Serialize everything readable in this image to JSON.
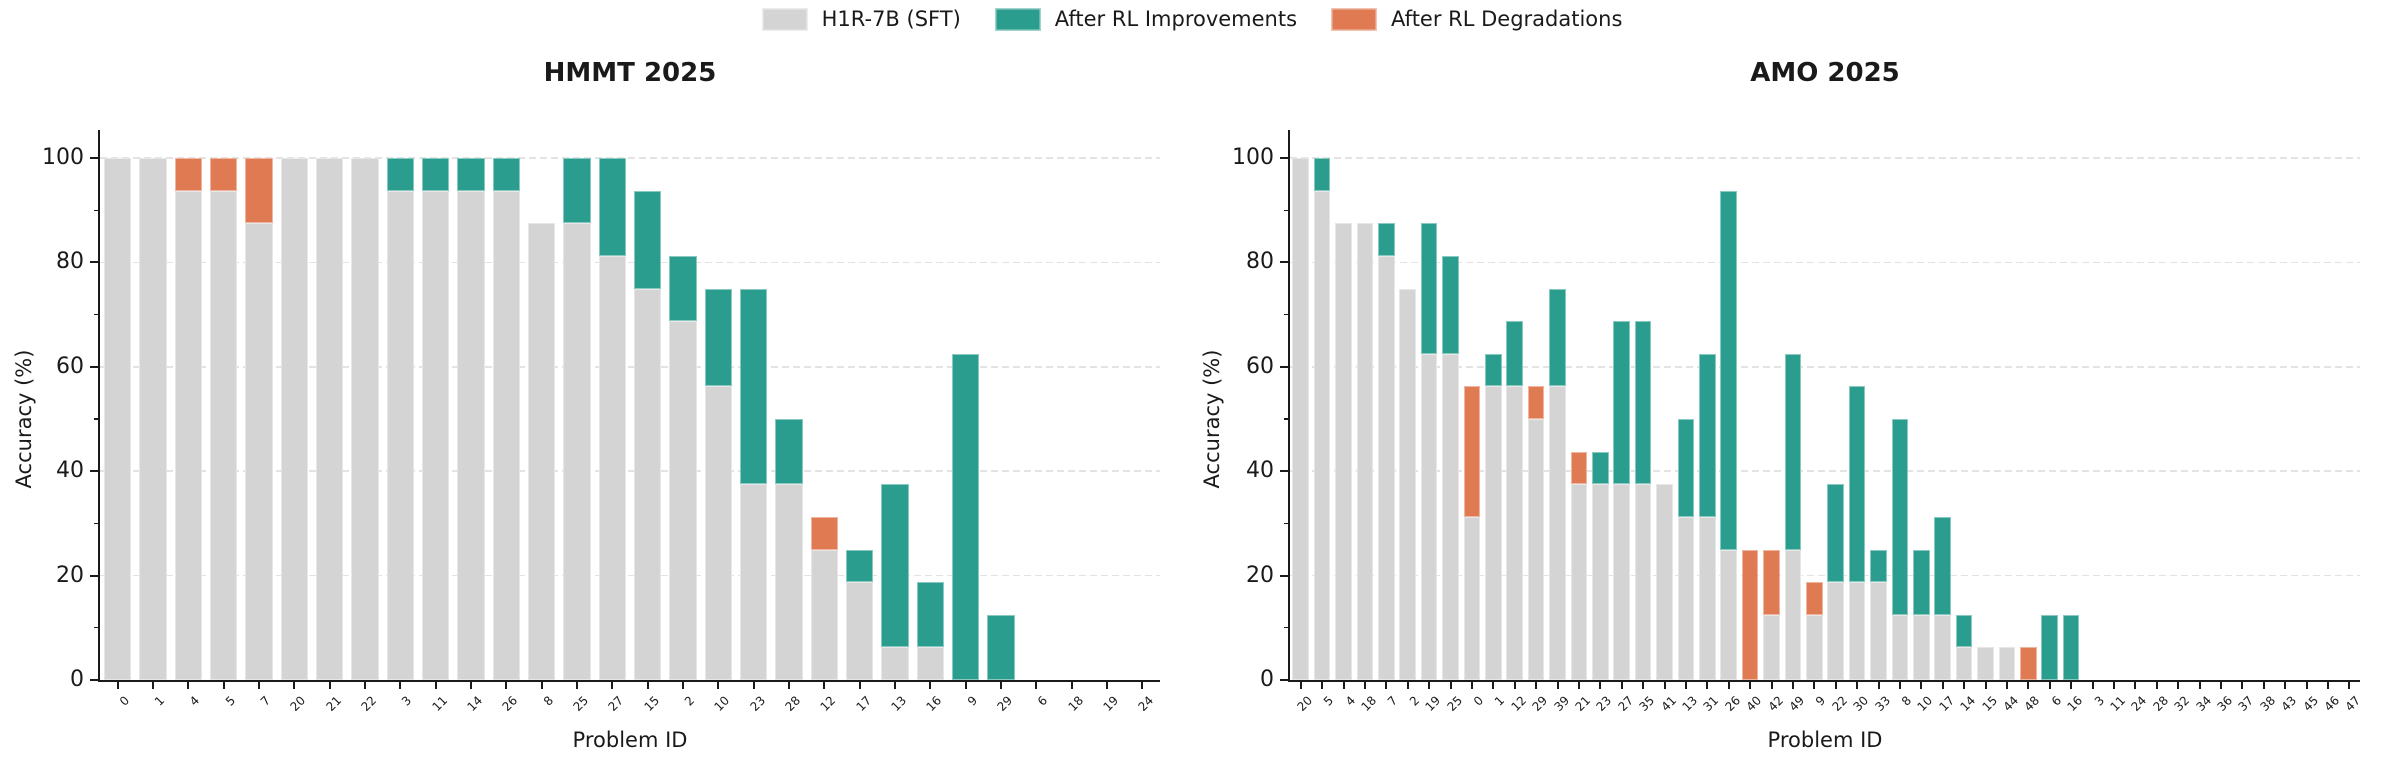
{
  "legend": {
    "items": [
      {
        "key": "sft",
        "label": "H1R-7B (SFT)",
        "color": "#d4d4d4"
      },
      {
        "key": "improvement",
        "label": "After RL Improvements",
        "color": "#2a9d8f"
      },
      {
        "key": "degradation",
        "label": "After RL Degradations",
        "color": "#e07a52"
      }
    ]
  },
  "chart_data": [
    {
      "type": "bar",
      "title": "HMMT 2025",
      "xlabel": "Problem ID",
      "ylabel": "Accuracy (%)",
      "ylim": [
        0,
        105
      ],
      "yticks": [
        0,
        20,
        40,
        60,
        80,
        100
      ],
      "grid": "dashed horizontal at major yticks",
      "legend_position": "top center above both charts",
      "stack_semantics": "gray bar = min(sft, after_rl); teal segment = gain from sft up to after_rl; orange segment = loss from after_rl up to sft",
      "problems": [
        {
          "id": "0",
          "sft": 100,
          "after_rl": 100
        },
        {
          "id": "1",
          "sft": 100,
          "after_rl": 100
        },
        {
          "id": "4",
          "sft": 100,
          "after_rl": 93.75
        },
        {
          "id": "5",
          "sft": 100,
          "after_rl": 93.75
        },
        {
          "id": "7",
          "sft": 100,
          "after_rl": 87.5
        },
        {
          "id": "20",
          "sft": 100,
          "after_rl": 100
        },
        {
          "id": "21",
          "sft": 100,
          "after_rl": 100
        },
        {
          "id": "22",
          "sft": 100,
          "after_rl": 100
        },
        {
          "id": "3",
          "sft": 93.75,
          "after_rl": 100
        },
        {
          "id": "11",
          "sft": 93.75,
          "after_rl": 100
        },
        {
          "id": "14",
          "sft": 93.75,
          "after_rl": 100
        },
        {
          "id": "26",
          "sft": 93.75,
          "after_rl": 100
        },
        {
          "id": "8",
          "sft": 87.5,
          "after_rl": 87.5
        },
        {
          "id": "25",
          "sft": 87.5,
          "after_rl": 100
        },
        {
          "id": "27",
          "sft": 81.25,
          "after_rl": 100
        },
        {
          "id": "15",
          "sft": 75,
          "after_rl": 93.75
        },
        {
          "id": "2",
          "sft": 68.75,
          "after_rl": 81.25
        },
        {
          "id": "10",
          "sft": 56.25,
          "after_rl": 75
        },
        {
          "id": "23",
          "sft": 37.5,
          "after_rl": 75
        },
        {
          "id": "28",
          "sft": 37.5,
          "after_rl": 50
        },
        {
          "id": "12",
          "sft": 31.25,
          "after_rl": 25
        },
        {
          "id": "17",
          "sft": 18.75,
          "after_rl": 25
        },
        {
          "id": "13",
          "sft": 6.25,
          "after_rl": 37.5
        },
        {
          "id": "16",
          "sft": 6.25,
          "after_rl": 18.75
        },
        {
          "id": "9",
          "sft": 0,
          "after_rl": 62.5
        },
        {
          "id": "29",
          "sft": 0,
          "after_rl": 12.5
        },
        {
          "id": "6",
          "sft": 0,
          "after_rl": 0
        },
        {
          "id": "18",
          "sft": 0,
          "after_rl": 0
        },
        {
          "id": "19",
          "sft": 0,
          "after_rl": 0
        },
        {
          "id": "24",
          "sft": 0,
          "after_rl": 0
        }
      ]
    },
    {
      "type": "bar",
      "title": "AMO 2025",
      "xlabel": "Problem ID",
      "ylabel": "Accuracy (%)",
      "ylim": [
        0,
        105
      ],
      "yticks": [
        0,
        20,
        40,
        60,
        80,
        100
      ],
      "grid": "dashed horizontal at major yticks",
      "stack_semantics": "gray bar = min(sft, after_rl); teal segment = gain from sft up to after_rl; orange segment = loss from after_rl up to sft",
      "problems": [
        {
          "id": "20",
          "sft": 100,
          "after_rl": 100
        },
        {
          "id": "5",
          "sft": 93.75,
          "after_rl": 100
        },
        {
          "id": "4",
          "sft": 87.5,
          "after_rl": 87.5
        },
        {
          "id": "18",
          "sft": 87.5,
          "after_rl": 87.5
        },
        {
          "id": "7",
          "sft": 81.25,
          "after_rl": 87.5
        },
        {
          "id": "2",
          "sft": 75,
          "after_rl": 75
        },
        {
          "id": "19",
          "sft": 62.5,
          "after_rl": 87.5
        },
        {
          "id": "25",
          "sft": 62.5,
          "after_rl": 81.25
        },
        {
          "id": "0",
          "sft": 56.25,
          "after_rl": 31.25
        },
        {
          "id": "1",
          "sft": 56.25,
          "after_rl": 62.5
        },
        {
          "id": "12",
          "sft": 56.25,
          "after_rl": 68.75
        },
        {
          "id": "29",
          "sft": 56.25,
          "after_rl": 50
        },
        {
          "id": "39",
          "sft": 56.25,
          "after_rl": 75
        },
        {
          "id": "21",
          "sft": 43.75,
          "after_rl": 37.5
        },
        {
          "id": "23",
          "sft": 37.5,
          "after_rl": 43.75
        },
        {
          "id": "27",
          "sft": 37.5,
          "after_rl": 68.75
        },
        {
          "id": "35",
          "sft": 37.5,
          "after_rl": 68.75
        },
        {
          "id": "41",
          "sft": 37.5,
          "after_rl": 37.5
        },
        {
          "id": "13",
          "sft": 31.25,
          "after_rl": 50
        },
        {
          "id": "31",
          "sft": 31.25,
          "after_rl": 62.5
        },
        {
          "id": "26",
          "sft": 25,
          "after_rl": 93.75
        },
        {
          "id": "40",
          "sft": 25,
          "after_rl": 0
        },
        {
          "id": "42",
          "sft": 25,
          "after_rl": 12.5
        },
        {
          "id": "49",
          "sft": 25,
          "after_rl": 62.5
        },
        {
          "id": "9",
          "sft": 18.75,
          "after_rl": 12.5
        },
        {
          "id": "22",
          "sft": 18.75,
          "after_rl": 37.5
        },
        {
          "id": "30",
          "sft": 18.75,
          "after_rl": 56.25
        },
        {
          "id": "33",
          "sft": 18.75,
          "after_rl": 25
        },
        {
          "id": "8",
          "sft": 12.5,
          "after_rl": 50
        },
        {
          "id": "10",
          "sft": 12.5,
          "after_rl": 25
        },
        {
          "id": "17",
          "sft": 12.5,
          "after_rl": 31.25
        },
        {
          "id": "14",
          "sft": 6.25,
          "after_rl": 12.5
        },
        {
          "id": "15",
          "sft": 6.25,
          "after_rl": 6.25
        },
        {
          "id": "44",
          "sft": 6.25,
          "after_rl": 6.25
        },
        {
          "id": "48",
          "sft": 6.25,
          "after_rl": 0
        },
        {
          "id": "6",
          "sft": 0,
          "after_rl": 12.5
        },
        {
          "id": "16",
          "sft": 0,
          "after_rl": 12.5
        },
        {
          "id": "3",
          "sft": 0,
          "after_rl": 0
        },
        {
          "id": "11",
          "sft": 0,
          "after_rl": 0
        },
        {
          "id": "24",
          "sft": 0,
          "after_rl": 0
        },
        {
          "id": "28",
          "sft": 0,
          "after_rl": 0
        },
        {
          "id": "32",
          "sft": 0,
          "after_rl": 0
        },
        {
          "id": "34",
          "sft": 0,
          "after_rl": 0
        },
        {
          "id": "36",
          "sft": 0,
          "after_rl": 0
        },
        {
          "id": "37",
          "sft": 0,
          "after_rl": 0
        },
        {
          "id": "38",
          "sft": 0,
          "after_rl": 0
        },
        {
          "id": "43",
          "sft": 0,
          "after_rl": 0
        },
        {
          "id": "45",
          "sft": 0,
          "after_rl": 0
        },
        {
          "id": "46",
          "sft": 0,
          "after_rl": 0
        },
        {
          "id": "47",
          "sft": 0,
          "after_rl": 0
        }
      ]
    }
  ]
}
